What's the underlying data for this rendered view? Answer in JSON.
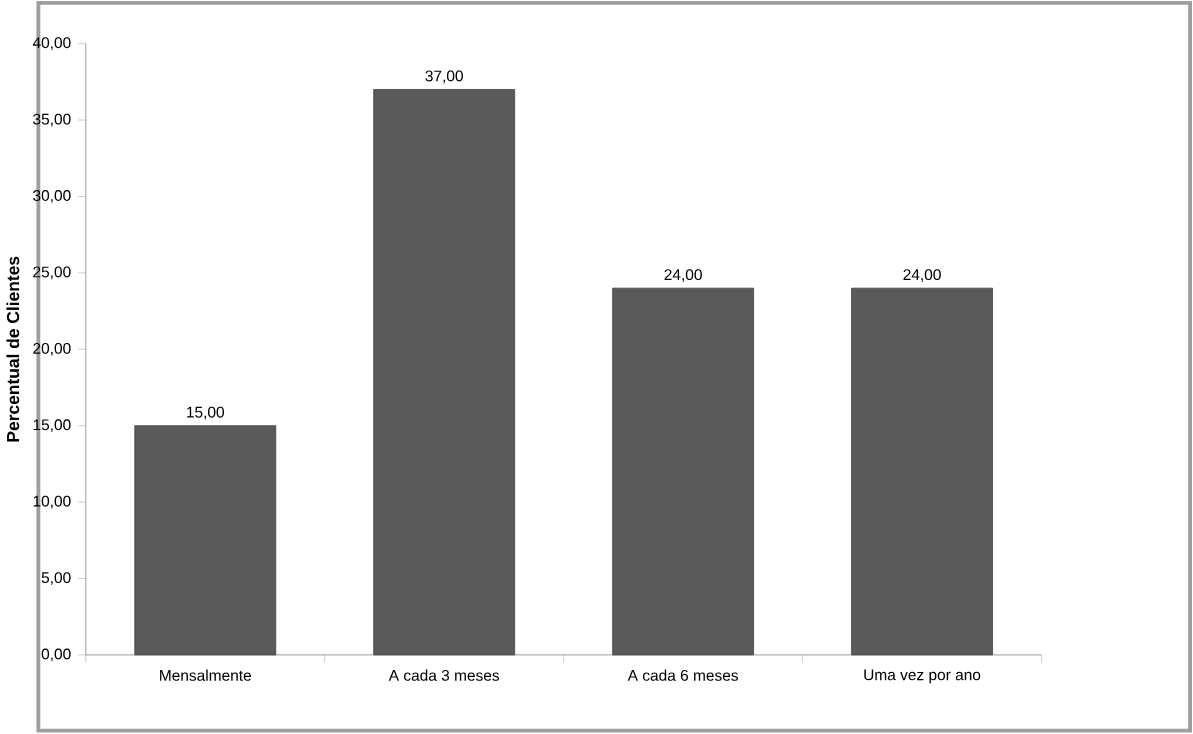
{
  "chart_data": {
    "type": "bar",
    "ylabel": "Percentual  de Clientes",
    "categories": [
      "Mensalmente",
      "A cada 3 meses",
      "A cada 6 meses",
      "Uma vez por ano"
    ],
    "values": [
      15,
      37,
      24,
      24
    ],
    "value_labels": [
      "15,00",
      "37,00",
      "24,00",
      "24,00"
    ],
    "color": "#5a5a5a",
    "ylim": [
      0,
      40
    ],
    "yticks": [
      {
        "value": 0,
        "label": "0,00"
      },
      {
        "value": 5,
        "label": "5,00"
      },
      {
        "value": 10,
        "label": "10,00"
      },
      {
        "value": 15,
        "label": "15,00"
      },
      {
        "value": 20,
        "label": "20,00"
      },
      {
        "value": 25,
        "label": "25,00"
      },
      {
        "value": 30,
        "label": "30,00"
      },
      {
        "value": 35,
        "label": "35,00"
      },
      {
        "value": 40,
        "label": "40,00"
      }
    ],
    "grid": false
  }
}
